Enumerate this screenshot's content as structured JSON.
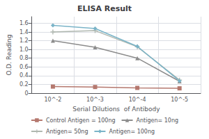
{
  "chart_data": {
    "type": "line",
    "title": "ELISA Result",
    "xlabel": "Serial Dilutions  of Antibody",
    "ylabel": "O.D. Reading",
    "categories": [
      "10^-2",
      "10^-3",
      "10^-4",
      "10^-5"
    ],
    "series": [
      {
        "name": "Control Antigen = 100ng",
        "color": "#b5786e",
        "marker": "square",
        "values": [
          0.15,
          0.14,
          0.12,
          0.11
        ]
      },
      {
        "name": "Antigen= 10ng",
        "color": "#8c8c8c",
        "marker": "triangle",
        "values": [
          1.2,
          1.05,
          0.8,
          0.27
        ]
      },
      {
        "name": "Antigen= 50ng",
        "color": "#b0b8b0",
        "marker": "plus",
        "values": [
          1.4,
          1.43,
          1.06,
          0.3
        ]
      },
      {
        "name": "Antigen= 100ng",
        "color": "#7ab4c8",
        "marker": "diamond",
        "values": [
          1.55,
          1.48,
          1.07,
          0.28
        ]
      }
    ],
    "ylim": [
      0,
      1.75
    ],
    "yticks": [
      0,
      0.2,
      0.4,
      0.6,
      0.8,
      {
        "value": 1,
        "label": "1.0"
      },
      1.2,
      1.4,
      1.6
    ],
    "grid": true,
    "legend": "bottom"
  }
}
